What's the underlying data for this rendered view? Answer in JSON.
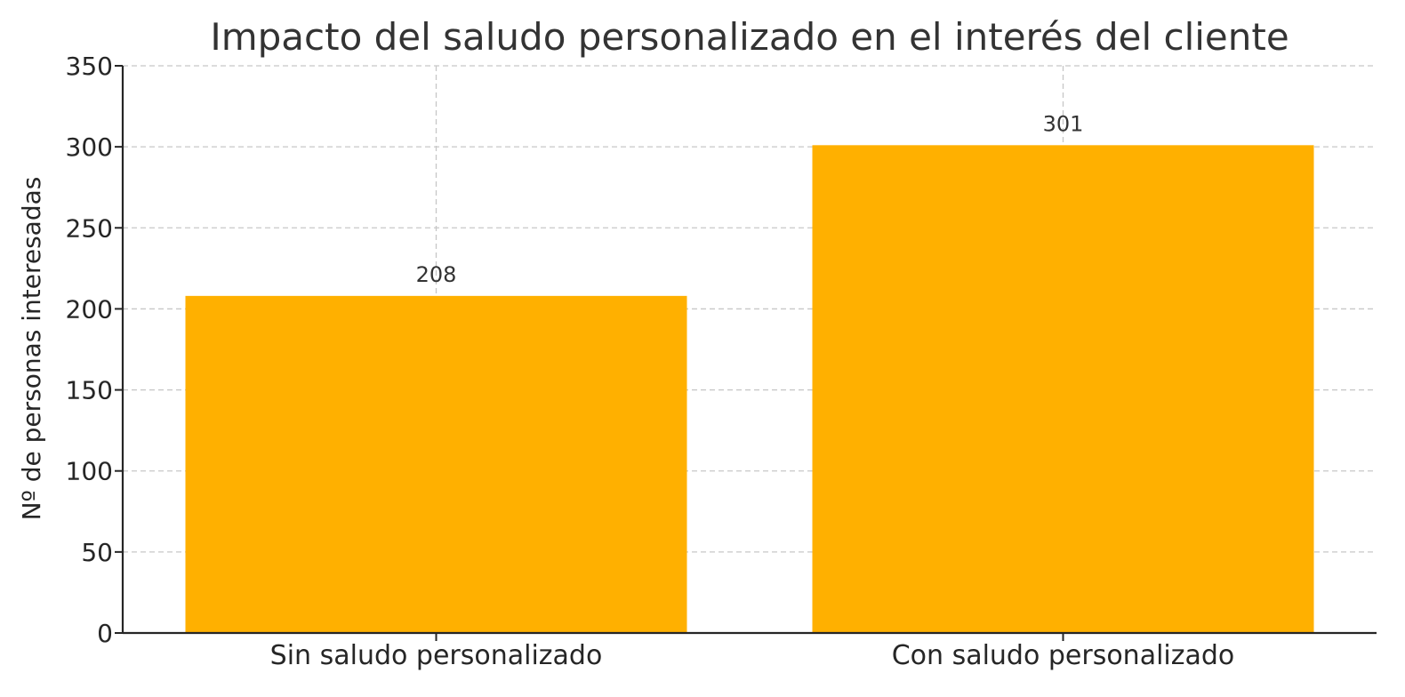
{
  "chart_data": {
    "type": "bar",
    "title": "Impacto del saludo personalizado en el interés del cliente",
    "xlabel": "",
    "ylabel": "Nº de personas interesadas",
    "categories": [
      "Sin saludo personalizado",
      "Con saludo personalizado"
    ],
    "values": [
      208,
      301
    ],
    "data_labels": [
      "208",
      "301"
    ],
    "ylim": [
      0,
      350
    ],
    "yticks": [
      0,
      50,
      100,
      150,
      200,
      250,
      300,
      350
    ],
    "grid": true,
    "bar_color": "#FFB000"
  }
}
